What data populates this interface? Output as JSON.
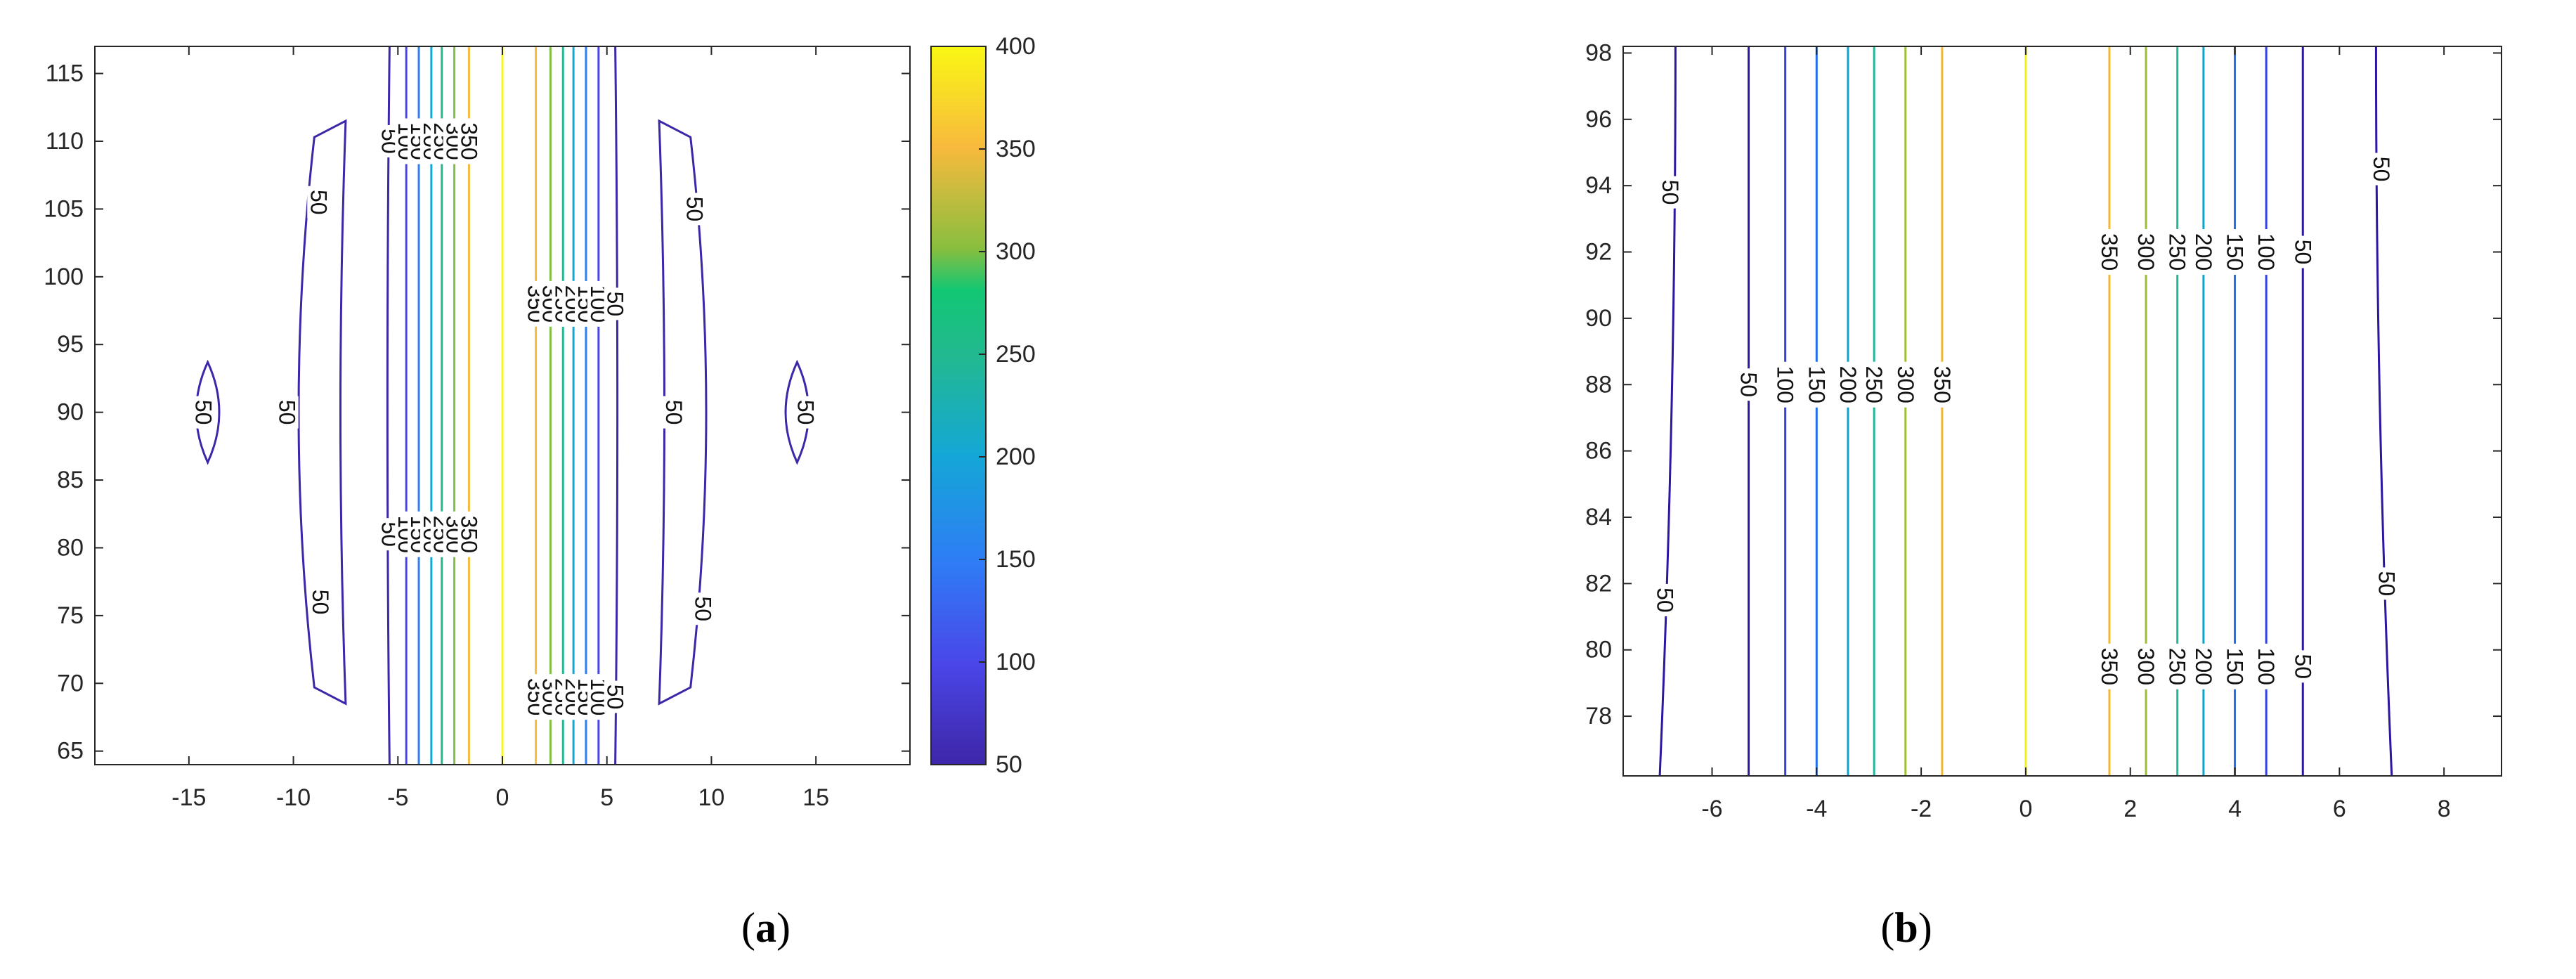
{
  "panels": [
    {
      "label_open": "(",
      "label_letter": "a",
      "label_close": ")"
    },
    {
      "label_open": "(",
      "label_letter": "b",
      "label_close": ")"
    }
  ],
  "chart_data": [
    {
      "type": "contour",
      "xlim": [
        -19.5,
        19.5
      ],
      "ylim": [
        64,
        117
      ],
      "xticks": [
        -15,
        -10,
        -5,
        0,
        5,
        10,
        15
      ],
      "yticks": [
        65,
        70,
        75,
        80,
        85,
        90,
        95,
        100,
        105,
        110,
        115
      ],
      "levels": [
        50,
        100,
        150,
        200,
        250,
        300,
        350,
        400
      ],
      "colorbar": {
        "min": 50,
        "max": 400,
        "ticks": [
          50,
          100,
          150,
          200,
          250,
          300,
          350,
          400
        ]
      },
      "contours": [
        {
          "level": 50,
          "x": [
            -5.4,
            5.4
          ]
        },
        {
          "level": 100,
          "x": [
            -4.6,
            4.6
          ]
        },
        {
          "level": 150,
          "x": [
            -4.0,
            4.0
          ]
        },
        {
          "level": 200,
          "x": [
            -3.4,
            3.4
          ]
        },
        {
          "level": 250,
          "x": [
            -2.9,
            2.9
          ]
        },
        {
          "level": 300,
          "x": [
            -2.3,
            2.3
          ]
        },
        {
          "level": 350,
          "x": [
            -1.6,
            1.6
          ]
        },
        {
          "level": 400,
          "x": [
            0
          ]
        }
      ],
      "islands": [
        {
          "level": 50,
          "x_range": [
            -10.5,
            -7.5
          ],
          "y_range": [
            68.5,
            111.5
          ]
        },
        {
          "level": 50,
          "x_range": [
            7.5,
            10.5
          ],
          "y_range": [
            68.5,
            111.5
          ]
        },
        {
          "level": 50,
          "x_range": [
            -14.6,
            -13.6
          ],
          "y_range": [
            86.3,
            93.7
          ]
        },
        {
          "level": 50,
          "x_range": [
            13.6,
            14.6
          ],
          "y_range": [
            86.3,
            93.7
          ]
        }
      ],
      "labels": [
        {
          "text": "50",
          "x": -8.8,
          "y": 105.5
        },
        {
          "text": "50",
          "x": -10.3,
          "y": 90
        },
        {
          "text": "50",
          "x": -8.7,
          "y": 76
        },
        {
          "text": "50",
          "x": -14.3,
          "y": 90
        },
        {
          "text": "50",
          "x": 9.2,
          "y": 105
        },
        {
          "text": "50",
          "x": 8.2,
          "y": 90
        },
        {
          "text": "50",
          "x": 9.6,
          "y": 75.5
        },
        {
          "text": "50",
          "x": 14.5,
          "y": 90
        }
      ],
      "stacked_labels": [
        {
          "y": 110,
          "text": [
            "50",
            "100",
            "150",
            "200",
            "250",
            "300",
            "350"
          ],
          "x": [
            -5.4,
            -4.6,
            -4.0,
            -3.4,
            -2.9,
            -2.3,
            -1.6
          ]
        },
        {
          "y": 98,
          "text": [
            "350",
            "300",
            "250",
            "200",
            "150",
            "100",
            "50"
          ],
          "x": [
            1.6,
            2.3,
            2.9,
            3.4,
            4.0,
            4.6,
            5.4
          ]
        },
        {
          "y": 81,
          "text": [
            "50",
            "100",
            "150",
            "200",
            "250",
            "300",
            "350"
          ],
          "x": [
            -5.4,
            -4.6,
            -4.0,
            -3.4,
            -2.9,
            -2.3,
            -1.6
          ]
        },
        {
          "y": 69,
          "text": [
            "350",
            "300",
            "250",
            "200",
            "150",
            "100",
            "50"
          ],
          "x": [
            1.6,
            2.3,
            2.9,
            3.4,
            4.0,
            4.6,
            5.4
          ]
        }
      ]
    },
    {
      "type": "contour",
      "xlim": [
        -7.7,
        9.1
      ],
      "ylim": [
        76.2,
        98.2
      ],
      "xticks": [
        -6,
        -4,
        -2,
        0,
        2,
        4,
        6,
        8
      ],
      "yticks": [
        78,
        80,
        82,
        84,
        86,
        88,
        90,
        92,
        94,
        96,
        98
      ],
      "levels": [
        50,
        100,
        150,
        200,
        250,
        300,
        350,
        400
      ],
      "contours": [
        {
          "level": 50,
          "x": [
            -5.3,
            5.3
          ]
        },
        {
          "level": 100,
          "x": [
            -4.6,
            4.6
          ]
        },
        {
          "level": 150,
          "x": [
            -4.0,
            4.0
          ]
        },
        {
          "level": 200,
          "x": [
            -3.4,
            3.4
          ]
        },
        {
          "level": 250,
          "x": [
            -2.9,
            2.9
          ]
        },
        {
          "level": 300,
          "x": [
            -2.3,
            2.3
          ]
        },
        {
          "level": 350,
          "x": [
            -1.6,
            1.6
          ]
        },
        {
          "level": 400,
          "x": [
            0
          ]
        }
      ],
      "outer": {
        "level": 50,
        "x_top": [
          -6.7,
          6.7
        ],
        "x_bottom": [
          -7.0,
          7.0
        ]
      },
      "labels": [
        {
          "text": "50",
          "x": -6.8,
          "y": 93.8
        },
        {
          "text": "50",
          "x": -6.9,
          "y": 81.5
        },
        {
          "text": "50",
          "x": 6.8,
          "y": 94.5
        },
        {
          "text": "50",
          "x": 6.9,
          "y": 82
        }
      ],
      "stacked_labels": [
        {
          "y": 88,
          "text": [
            "50",
            "100",
            "150",
            "200",
            "250",
            "300",
            "350"
          ],
          "x": [
            -5.3,
            -4.6,
            -4.0,
            -3.4,
            -2.9,
            -2.3,
            -1.6
          ]
        },
        {
          "y": 92,
          "text": [
            "350",
            "300",
            "250",
            "200",
            "150",
            "100",
            "50"
          ],
          "x": [
            1.6,
            2.3,
            2.9,
            3.4,
            4.0,
            4.6,
            5.3
          ]
        },
        {
          "y": 79.5,
          "text": [
            "350",
            "300",
            "250",
            "200",
            "150",
            "100",
            "50"
          ],
          "x": [
            1.6,
            2.3,
            2.9,
            3.4,
            4.0,
            4.6,
            5.3
          ]
        }
      ]
    }
  ]
}
